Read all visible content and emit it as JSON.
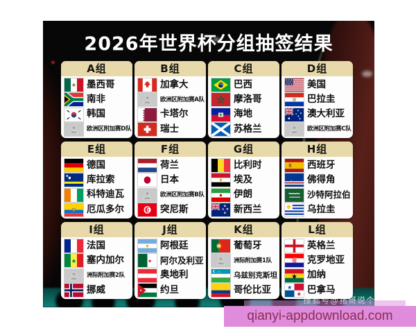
{
  "title": "2026年世界杯分组抽签结果",
  "watermark": "搜狐号@猪哥说个球",
  "banner": {
    "text": "qianyi-appdownload.com"
  },
  "colors": {
    "group_header_bg": "#e7d9a9",
    "banner_bg": "#de8cdb",
    "banner_text": "#8c2e57",
    "title_text": "#ffffff"
  },
  "groups": [
    {
      "label": "A组",
      "teams": [
        {
          "name": "墨西哥",
          "flag": "mexico"
        },
        {
          "name": "南非",
          "flag": "southafrica"
        },
        {
          "name": "韩国",
          "flag": "southkorea"
        },
        {
          "name": "欧洲区附加赛D队",
          "flag": "placeholder"
        }
      ]
    },
    {
      "label": "B组",
      "teams": [
        {
          "name": "加拿大",
          "flag": "canada"
        },
        {
          "name": "欧洲区附加赛A队",
          "flag": "placeholder"
        },
        {
          "name": "卡塔尔",
          "flag": "qatar"
        },
        {
          "name": "瑞士",
          "flag": "switzerland"
        }
      ]
    },
    {
      "label": "C组",
      "teams": [
        {
          "name": "巴西",
          "flag": "brazil"
        },
        {
          "name": "摩洛哥",
          "flag": "morocco"
        },
        {
          "name": "海地",
          "flag": "haiti"
        },
        {
          "name": "苏格兰",
          "flag": "scotland"
        }
      ]
    },
    {
      "label": "D组",
      "teams": [
        {
          "name": "美国",
          "flag": "usa"
        },
        {
          "name": "巴拉圭",
          "flag": "paraguay"
        },
        {
          "name": "澳大利亚",
          "flag": "australia"
        },
        {
          "name": "欧洲区附加赛C队",
          "flag": "placeholder"
        }
      ]
    },
    {
      "label": "E组",
      "teams": [
        {
          "name": "德国",
          "flag": "germany"
        },
        {
          "name": "库拉索",
          "flag": "curacao"
        },
        {
          "name": "科特迪瓦",
          "flag": "ivorycoast"
        },
        {
          "name": "厄瓜多尔",
          "flag": "ecuador"
        }
      ]
    },
    {
      "label": "F组",
      "teams": [
        {
          "name": "荷兰",
          "flag": "netherlands"
        },
        {
          "name": "日本",
          "flag": "japan"
        },
        {
          "name": "欧洲区附加赛B队",
          "flag": "placeholder"
        },
        {
          "name": "突尼斯",
          "flag": "tunisia"
        }
      ]
    },
    {
      "label": "G组",
      "teams": [
        {
          "name": "比利时",
          "flag": "belgium"
        },
        {
          "name": "埃及",
          "flag": "egypt"
        },
        {
          "name": "伊朗",
          "flag": "iran"
        },
        {
          "name": "新西兰",
          "flag": "newzealand"
        }
      ]
    },
    {
      "label": "H组",
      "teams": [
        {
          "name": "西班牙",
          "flag": "spain"
        },
        {
          "name": "佛得角",
          "flag": "capeverde"
        },
        {
          "name": "沙特阿拉伯",
          "flag": "saudiarabia"
        },
        {
          "name": "乌拉圭",
          "flag": "uruguay"
        }
      ]
    },
    {
      "label": "I组",
      "teams": [
        {
          "name": "法国",
          "flag": "france"
        },
        {
          "name": "塞内加尔",
          "flag": "senegal"
        },
        {
          "name": "洲际附加赛2队",
          "flag": "placeholder"
        },
        {
          "name": "挪威",
          "flag": "norway"
        }
      ]
    },
    {
      "label": "J组",
      "teams": [
        {
          "name": "阿根廷",
          "flag": "argentina"
        },
        {
          "name": "阿尔及利亚",
          "flag": "algeria"
        },
        {
          "name": "奥地利",
          "flag": "austria"
        },
        {
          "name": "约旦",
          "flag": "jordan"
        }
      ]
    },
    {
      "label": "K组",
      "teams": [
        {
          "name": "葡萄牙",
          "flag": "portugal"
        },
        {
          "name": "洲际附加赛1队",
          "flag": "placeholder"
        },
        {
          "name": "乌兹别克斯坦",
          "flag": "uzbekistan"
        },
        {
          "name": "哥伦比亚",
          "flag": "colombia"
        }
      ]
    },
    {
      "label": "L组",
      "teams": [
        {
          "name": "英格兰",
          "flag": "england"
        },
        {
          "name": "克罗地亚",
          "flag": "croatia"
        },
        {
          "name": "加纳",
          "flag": "ghana"
        },
        {
          "name": "巴拿马",
          "flag": "panama"
        }
      ]
    }
  ]
}
